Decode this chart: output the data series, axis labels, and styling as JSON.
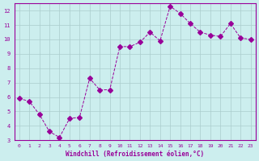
{
  "x": [
    0,
    1,
    2,
    3,
    4,
    5,
    6,
    7,
    8,
    9,
    10,
    11,
    12,
    13,
    14,
    15,
    16,
    17,
    18,
    19,
    20,
    21,
    22,
    23
  ],
  "y": [
    5.9,
    5.7,
    4.8,
    3.6,
    3.2,
    4.5,
    4.6,
    7.3,
    6.5,
    6.5,
    9.5,
    9.5,
    9.8,
    10.5,
    9.9,
    12.3,
    11.8,
    11.1,
    10.5,
    10.3,
    10.2,
    11.1,
    10.1,
    10.0
  ],
  "line_color": "#990099",
  "marker": "D",
  "marker_size": 3,
  "bg_color": "#cceeee",
  "grid_color": "#aacccc",
  "xlabel": "Windchill (Refroidissement éolien,°C)",
  "xlabel_color": "#990099",
  "tick_color": "#990099",
  "ylim": [
    3,
    12.5
  ],
  "xlim": [
    -0.5,
    23.5
  ],
  "yticks": [
    3,
    4,
    5,
    6,
    7,
    8,
    9,
    10,
    11,
    12
  ],
  "xticks": [
    0,
    1,
    2,
    3,
    4,
    5,
    6,
    7,
    8,
    9,
    10,
    11,
    12,
    13,
    14,
    15,
    16,
    17,
    18,
    19,
    20,
    21,
    22,
    23
  ]
}
